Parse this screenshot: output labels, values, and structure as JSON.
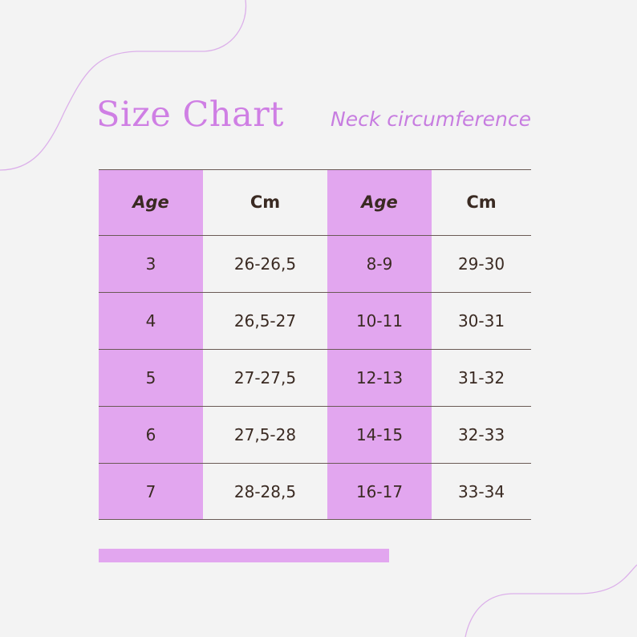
{
  "title": "Size Chart",
  "subtitle": "Neck circumference",
  "colors": {
    "accent": "#e2a6ef",
    "title": "#cf7fe4",
    "text": "#3a2a22",
    "line": "#6a5a55"
  },
  "table": {
    "headers": [
      "Age",
      "Cm",
      "Age",
      "Cm"
    ],
    "rows": [
      [
        "3",
        "26-26,5",
        "8-9",
        "29-30"
      ],
      [
        "4",
        "26,5-27",
        "10-11",
        "30-31"
      ],
      [
        "5",
        "27-27,5",
        "12-13",
        "31-32"
      ],
      [
        "6",
        "27,5-28",
        "14-15",
        "32-33"
      ],
      [
        "7",
        "28-28,5",
        "16-17",
        "33-34"
      ]
    ]
  }
}
